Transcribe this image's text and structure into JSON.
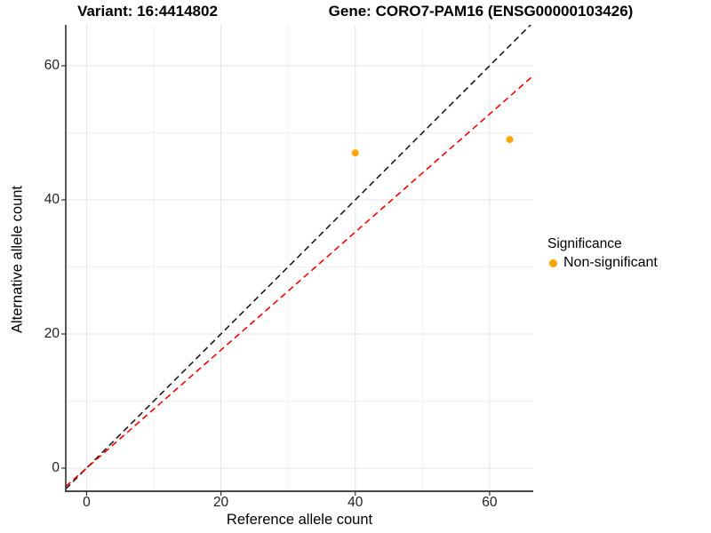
{
  "header": {
    "variant_title": "Variant: 16:4414802",
    "gene_title": "Gene: CORO7-PAM16 (ENSG00000103426)"
  },
  "legend": {
    "title": "Significance",
    "items": [
      {
        "label": "Non-significant",
        "color": "#FFA500"
      }
    ]
  },
  "chart_data": {
    "type": "scatter",
    "xlabel": "Reference allele count",
    "ylabel": "Alternative allele count",
    "x_ticks": [
      0,
      20,
      40,
      60
    ],
    "y_ticks": [
      0,
      20,
      40,
      60
    ],
    "x_minor_ticks": [
      10,
      30,
      50
    ],
    "y_minor_ticks": [
      10,
      30,
      50
    ],
    "xlim": [
      -3.1,
      66.5
    ],
    "ylim": [
      -3.45,
      66.1
    ],
    "grid": true,
    "legend_position": "right",
    "point_color": "#FFA500",
    "point_radius": 4,
    "points": [
      {
        "x": 40,
        "y": 47,
        "series": "Non-significant"
      },
      {
        "x": 63,
        "y": 49,
        "series": "Non-significant"
      }
    ],
    "lines": [
      {
        "name": "identity",
        "slope": 1,
        "intercept": 0,
        "color": "#1A1A1A",
        "style": "dashed"
      },
      {
        "name": "fit",
        "slope": 0.88,
        "intercept": 0,
        "color": "#FF0000",
        "style": "dashed"
      }
    ],
    "colors": {
      "grid_major": "#E4E4E4",
      "grid_minor": "#F1F1F1",
      "axis_line": "#2F2F2F",
      "tick": "#333333"
    }
  }
}
